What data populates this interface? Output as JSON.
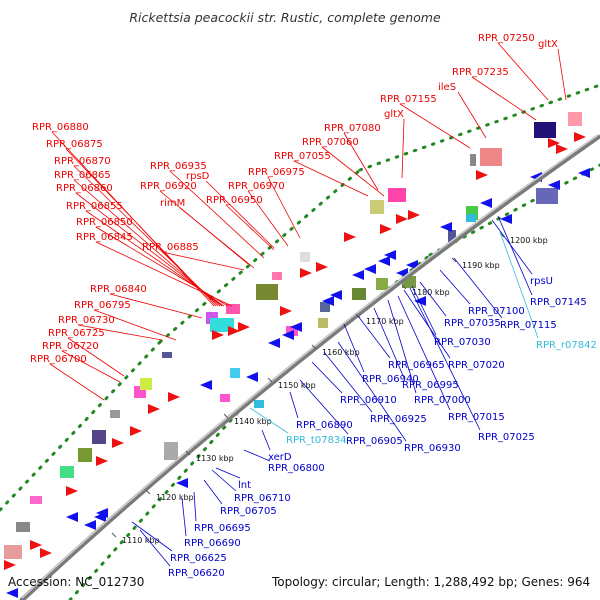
{
  "title": "Rickettsia peacockii str. Rustic, complete genome",
  "footer": {
    "accession": "Accession: NC_012730",
    "summary": "Topology: circular; Length: 1,288,492 bp; Genes: 964"
  },
  "colors": {
    "outer_label": "#ee0000",
    "inner_label": "#0000cc",
    "rna_label": "#33bbdd",
    "backbone": "#888888",
    "dots": "#228822",
    "forward_arrow": "#ee1111",
    "reverse_arrow": "#1111ee"
  },
  "kbp_ticks": [
    "1110 kbp",
    "1120 kbp",
    "1130 kbp",
    "1140 kbp",
    "1150 kbp",
    "1160 kbp",
    "1170 kbp",
    "1180 kbp",
    "1190 kbp",
    "1200 kbp"
  ],
  "outer_labels": [
    "RPR_07250",
    "gltX",
    "RPR_07235",
    "ileS",
    "RPR_07155",
    "gltX",
    "RPR_07080",
    "RPR_07060",
    "RPR_07055",
    "RPR_06975",
    "RPR_06970",
    "rpsD",
    "RPR_06935",
    "RPR_06920",
    "RPR_06950",
    "rimM",
    "RPR_06880",
    "RPR_06875",
    "RPR_06870",
    "RPR_06865",
    "RPR_06860",
    "RPR_06855",
    "RPR_06850",
    "RPR_06845",
    "RPR_06885",
    "RPR_06840",
    "RPR_06795",
    "RPR_06730",
    "RPR_06725",
    "RPR_06720",
    "RPR_06700"
  ],
  "inner_labels": [
    "RPR_06620",
    "RPR_06625",
    "RPR_06690",
    "RPR_06695",
    "RPR_06705",
    "RPR_06710",
    "lnt",
    "RPR_06800",
    "xerD",
    "RPR_t07834",
    "RPR_06890",
    "RPR_06905",
    "RPR_06910",
    "RPR_06925",
    "RPR_06930",
    "RPR_06940",
    "RPR_06965",
    "RPR_06995",
    "RPR_07000",
    "RPR_07015",
    "RPR_07025",
    "RPR_07020",
    "RPR_07030",
    "RPR_07035",
    "RPR_07100",
    "RPR_07115",
    "rpsU",
    "RPR_07145",
    "RPR_r07842"
  ]
}
